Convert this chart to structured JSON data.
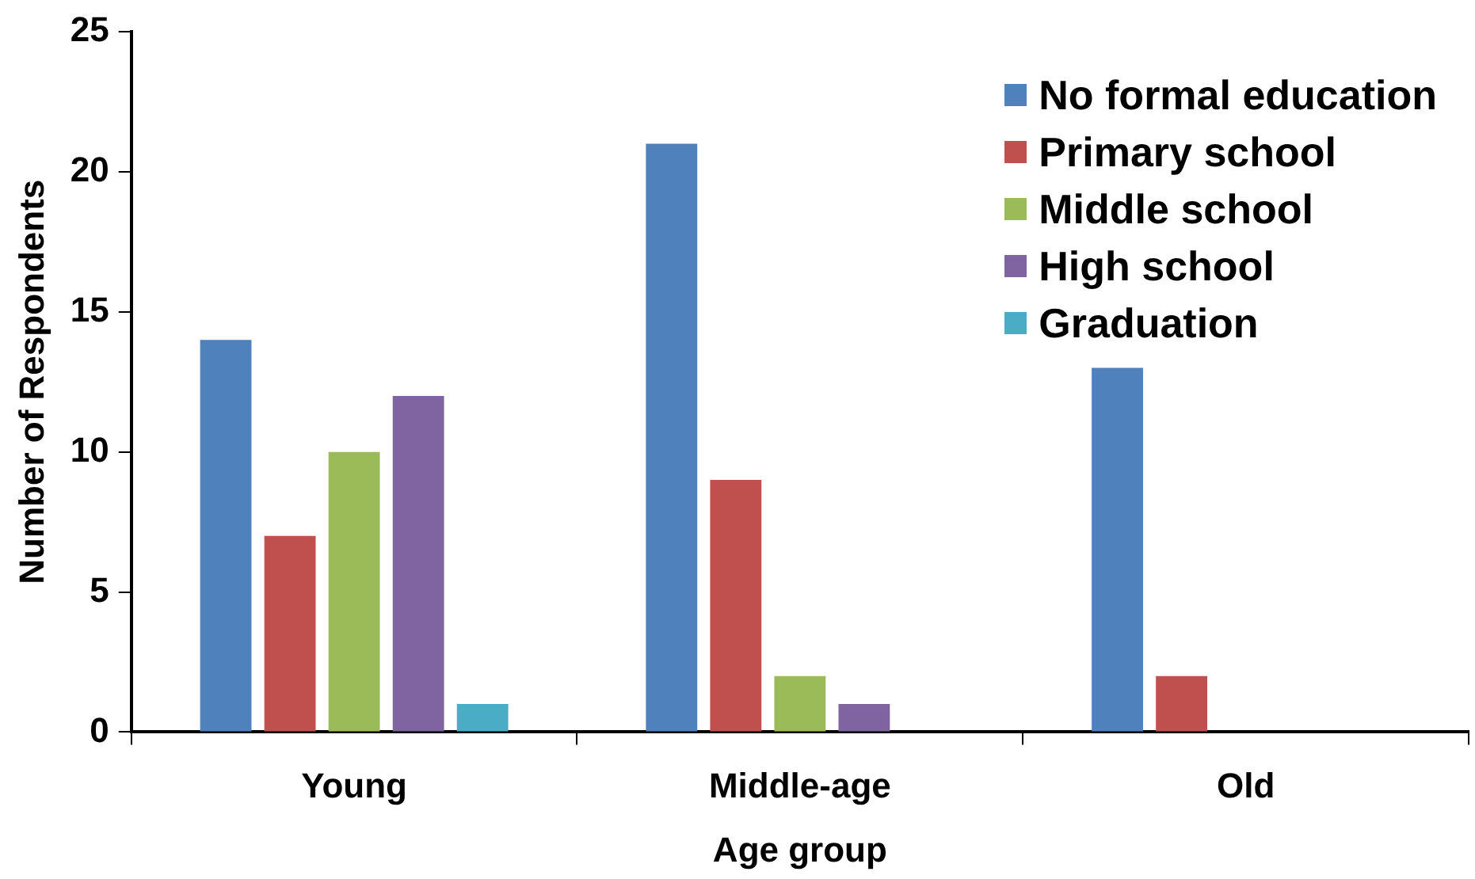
{
  "chart_data": {
    "type": "bar",
    "xlabel": "Age group",
    "ylabel": "Number of Respondents",
    "categories": [
      "Young",
      "Middle-age",
      "Old"
    ],
    "series": [
      {
        "name": "No formal education",
        "color": "#4f81bd",
        "values": [
          14,
          21,
          13
        ]
      },
      {
        "name": "Primary school",
        "color": "#c0504d",
        "values": [
          7,
          9,
          2
        ]
      },
      {
        "name": "Middle school",
        "color": "#9bbb59",
        "values": [
          10,
          2,
          0
        ]
      },
      {
        "name": "High school",
        "color": "#8064a2",
        "values": [
          12,
          1,
          0
        ]
      },
      {
        "name": "Graduation",
        "color": "#4bacc6",
        "values": [
          1,
          0,
          0
        ]
      }
    ],
    "ylim": [
      0,
      25
    ],
    "yticks": [
      0,
      5,
      10,
      15,
      20,
      25
    ],
    "grid": false,
    "legend": "top right"
  }
}
